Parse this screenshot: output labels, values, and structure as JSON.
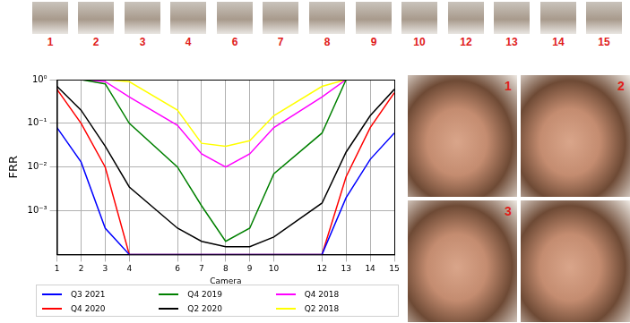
{
  "camera_strip": {
    "labels": [
      "1",
      "2",
      "3",
      "4",
      "6",
      "7",
      "8",
      "9",
      "10",
      "12",
      "13",
      "14",
      "15"
    ]
  },
  "chart_data": {
    "type": "line",
    "xlabel": "Camera",
    "ylabel": "FRR",
    "x": [
      1,
      2,
      3,
      4,
      6,
      7,
      8,
      9,
      10,
      12,
      13,
      14,
      15
    ],
    "xlim": [
      1,
      15
    ],
    "xticks": [
      1,
      2,
      3,
      4,
      6,
      7,
      8,
      9,
      10,
      12,
      13,
      14,
      15
    ],
    "ylim": [
      0.0001,
      1
    ],
    "yticks": [
      {
        "value": 1,
        "label": "10⁰"
      },
      {
        "value": 0.1,
        "label": "10⁻¹"
      },
      {
        "value": 0.01,
        "label": "10⁻²"
      },
      {
        "value": 0.001,
        "label": "10⁻³"
      }
    ],
    "log": "y",
    "grid": true,
    "legend": "bottom",
    "series": [
      {
        "name": "Q3 2021",
        "color": "#0000ff",
        "values": [
          0.08,
          0.013,
          0.0004,
          0.0001,
          0.0001,
          0.0001,
          0.0001,
          0.0001,
          0.0001,
          0.0001,
          0.002,
          0.015,
          0.06
        ]
      },
      {
        "name": "Q4 2020",
        "color": "#ff0000",
        "values": [
          0.6,
          0.1,
          0.01,
          0.0001,
          0.0001,
          0.0001,
          0.0001,
          0.0001,
          0.0001,
          0.0001,
          0.006,
          0.08,
          0.5
        ]
      },
      {
        "name": "Q4 2019",
        "color": "#008000",
        "values": [
          1,
          1,
          0.8,
          0.1,
          0.01,
          0.0013,
          0.0002,
          0.0004,
          0.007,
          0.06,
          1,
          1,
          1
        ]
      },
      {
        "name": "Q2 2020",
        "color": "#000000",
        "values": [
          0.7,
          0.2,
          0.03,
          0.0035,
          0.0004,
          0.0002,
          0.00015,
          0.00015,
          0.00025,
          0.0015,
          0.022,
          0.15,
          0.6
        ]
      },
      {
        "name": "Q4 2018",
        "color": "#ff00ff",
        "values": [
          1,
          1,
          0.9,
          0.4,
          0.09,
          0.02,
          0.01,
          0.02,
          0.08,
          0.4,
          1,
          1,
          1
        ]
      },
      {
        "name": "Q2 2018",
        "color": "#ffff00",
        "values": [
          1,
          1,
          1,
          0.9,
          0.2,
          0.035,
          0.03,
          0.04,
          0.15,
          0.7,
          1,
          1,
          1
        ]
      }
    ]
  },
  "face_crops": {
    "labels": [
      "1",
      "2",
      "3"
    ]
  }
}
